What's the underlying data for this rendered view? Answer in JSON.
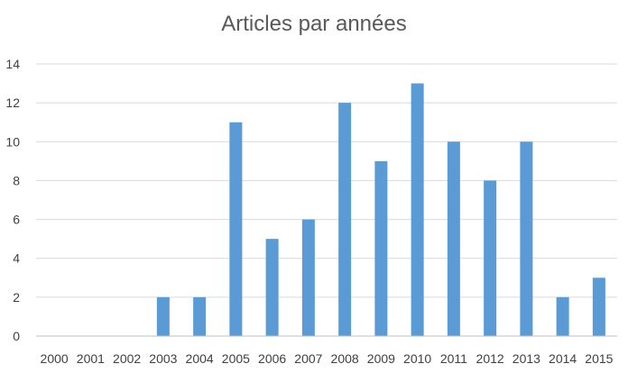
{
  "chart_data": {
    "type": "bar",
    "title": "Articles par années",
    "xlabel": "",
    "ylabel": "",
    "categories": [
      "2000",
      "2001",
      "2002",
      "2003",
      "2004",
      "2005",
      "2006",
      "2007",
      "2008",
      "2009",
      "2010",
      "2011",
      "2012",
      "2013",
      "2014",
      "2015"
    ],
    "values": [
      0,
      0,
      0,
      2,
      2,
      11,
      5,
      6,
      12,
      9,
      13,
      10,
      8,
      10,
      2,
      3
    ],
    "ylim": [
      0,
      14
    ],
    "yticks": [
      0,
      2,
      4,
      6,
      8,
      10,
      12,
      14
    ],
    "grid": true,
    "legend": "none",
    "bar_color": "#5b9bd5"
  }
}
